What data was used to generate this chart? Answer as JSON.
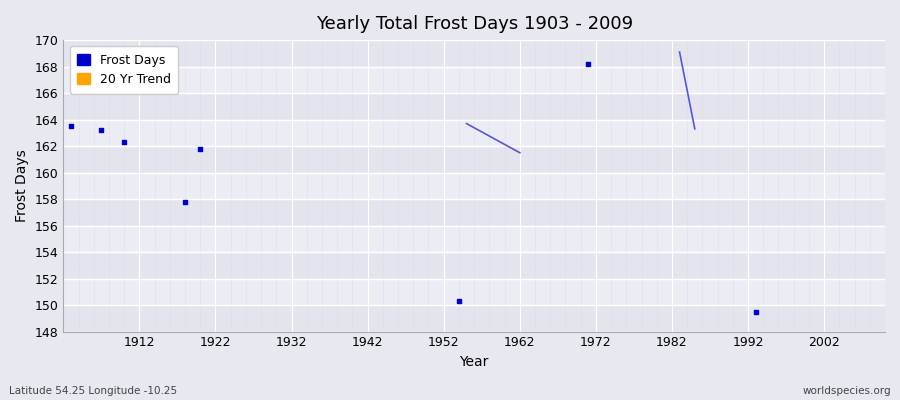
{
  "title": "Yearly Total Frost Days 1903 - 2009",
  "xlabel": "Year",
  "ylabel": "Frost Days",
  "xlim": [
    1902,
    2010
  ],
  "ylim": [
    148,
    170
  ],
  "yticks": [
    148,
    150,
    152,
    154,
    156,
    158,
    160,
    162,
    164,
    166,
    168,
    170
  ],
  "xticks": [
    1912,
    1922,
    1932,
    1942,
    1952,
    1962,
    1972,
    1982,
    1992,
    2002
  ],
  "plot_bg_color": "#e8e8f0",
  "fig_bg_color": "#e8e8f0",
  "grid_major_color": "#ffffff",
  "grid_minor_color": "#dcdce8",
  "scatter_color": "#0000cc",
  "trend_color": "#5555dd",
  "scatter_points": [
    [
      1903,
      163.5
    ],
    [
      1907,
      163.2
    ],
    [
      1910,
      162.3
    ],
    [
      1920,
      161.8
    ],
    [
      1918,
      157.8
    ],
    [
      1954,
      150.3
    ],
    [
      1971,
      168.2
    ],
    [
      1993,
      149.5
    ]
  ],
  "trend_segments": [
    [
      [
        1955,
        163.7
      ],
      [
        1962,
        161.5
      ]
    ],
    [
      [
        1983,
        169.1
      ],
      [
        1985,
        163.3
      ]
    ]
  ],
  "bottom_left_text": "Latitude 54.25 Longitude -10.25",
  "bottom_right_text": "worldspecies.org",
  "legend_entries": [
    {
      "label": "Frost Days",
      "color": "#0000cc"
    },
    {
      "label": "20 Yr Trend",
      "color": "#ffa500"
    }
  ]
}
